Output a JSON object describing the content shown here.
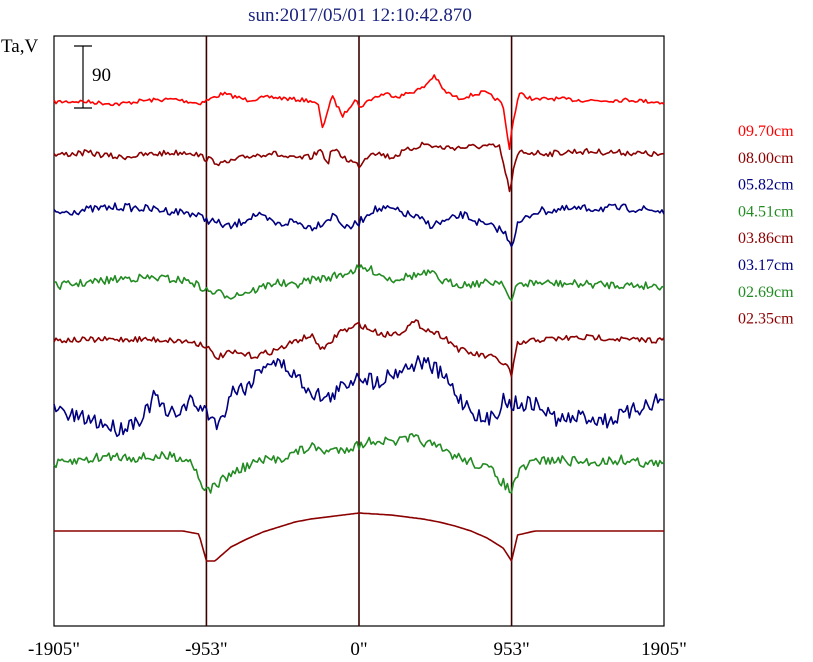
{
  "chart_data": {
    "type": "line",
    "title": "sun:2017/05/01 12:10:42.870",
    "ylabel": "Ta,V",
    "scale_bar_label": "90",
    "xlim": [
      -1905,
      1905
    ],
    "xticks": [
      {
        "value": -1905,
        "label": "-1905\""
      },
      {
        "value": -953,
        "label": "-953\""
      },
      {
        "value": 0,
        "label": "0\""
      },
      {
        "value": 953,
        "label": "953\""
      },
      {
        "value": 1905,
        "label": "1905\""
      }
    ],
    "vertical_lines": [
      -953,
      0,
      953
    ],
    "series": [
      {
        "name": "09.70cm",
        "color": "#ff0000",
        "offset": 102,
        "amp": 0.7,
        "noise": 2,
        "points": [
          [
            -1905,
            0
          ],
          [
            -1750,
            -1
          ],
          [
            -1500,
            3
          ],
          [
            -1350,
            -2
          ],
          [
            -1150,
            -4
          ],
          [
            -1000,
            2
          ],
          [
            -953,
            -2
          ],
          [
            -850,
            -12
          ],
          [
            -700,
            -3
          ],
          [
            -550,
            -7
          ],
          [
            -420,
            -4
          ],
          [
            -300,
            -2
          ],
          [
            -250,
            6
          ],
          [
            -230,
            40
          ],
          [
            -200,
            15
          ],
          [
            -170,
            -8
          ],
          [
            -100,
            20
          ],
          [
            -20,
            -6
          ],
          [
            0,
            8
          ],
          [
            80,
            -5
          ],
          [
            160,
            -12
          ],
          [
            250,
            -8
          ],
          [
            400,
            -20
          ],
          [
            470,
            -38
          ],
          [
            530,
            -16
          ],
          [
            620,
            -5
          ],
          [
            780,
            -14
          ],
          [
            860,
            -4
          ],
          [
            900,
            5
          ],
          [
            920,
            40
          ],
          [
            940,
            65
          ],
          [
            960,
            30
          ],
          [
            1000,
            -12
          ],
          [
            1100,
            -3
          ],
          [
            1200,
            -5
          ],
          [
            1350,
            -3
          ],
          [
            1500,
            -2
          ],
          [
            1700,
            -3
          ],
          [
            1905,
            1
          ]
        ]
      },
      {
        "name": "08.00cm",
        "color": "#8b0000",
        "offset": 155,
        "amp": 0.75,
        "noise": 3,
        "points": [
          [
            -1905,
            0
          ],
          [
            -1700,
            -3
          ],
          [
            -1500,
            3
          ],
          [
            -1250,
            -2
          ],
          [
            -1050,
            -4
          ],
          [
            -953,
            5
          ],
          [
            -850,
            12
          ],
          [
            -700,
            2
          ],
          [
            -550,
            -3
          ],
          [
            -420,
            5
          ],
          [
            -300,
            3
          ],
          [
            -230,
            -8
          ],
          [
            -200,
            15
          ],
          [
            -170,
            -8
          ],
          [
            -80,
            5
          ],
          [
            0,
            14
          ],
          [
            80,
            -5
          ],
          [
            200,
            3
          ],
          [
            400,
            -15
          ],
          [
            500,
            -10
          ],
          [
            650,
            -10
          ],
          [
            780,
            -12
          ],
          [
            880,
            -10
          ],
          [
            920,
            30
          ],
          [
            945,
            50
          ],
          [
            965,
            20
          ],
          [
            1000,
            -4
          ],
          [
            1200,
            -2
          ],
          [
            1350,
            -5
          ],
          [
            1700,
            -3
          ],
          [
            1905,
            0
          ]
        ]
      },
      {
        "name": "05.82cm",
        "color": "#000080",
        "offset": 213,
        "amp": 0.8,
        "noise": 4,
        "points": [
          [
            -1905,
            0
          ],
          [
            -1700,
            -4
          ],
          [
            -1500,
            -8
          ],
          [
            -1250,
            -4
          ],
          [
            -1050,
            0
          ],
          [
            -953,
            8
          ],
          [
            -800,
            18
          ],
          [
            -650,
            2
          ],
          [
            -500,
            15
          ],
          [
            -420,
            10
          ],
          [
            -300,
            18
          ],
          [
            -230,
            12
          ],
          [
            -150,
            2
          ],
          [
            -80,
            20
          ],
          [
            0,
            12
          ],
          [
            80,
            -4
          ],
          [
            200,
            -5
          ],
          [
            350,
            5
          ],
          [
            450,
            15
          ],
          [
            550,
            10
          ],
          [
            650,
            2
          ],
          [
            780,
            15
          ],
          [
            880,
            20
          ],
          [
            930,
            30
          ],
          [
            953,
            40
          ],
          [
            990,
            15
          ],
          [
            1100,
            -2
          ],
          [
            1250,
            -4
          ],
          [
            1500,
            -6
          ],
          [
            1700,
            -6
          ],
          [
            1905,
            -2
          ]
        ]
      },
      {
        "name": "04.51cm",
        "color": "#228b22",
        "offset": 286,
        "amp": 0.8,
        "noise": 4,
        "points": [
          [
            -1905,
            0
          ],
          [
            -1700,
            -4
          ],
          [
            -1450,
            -10
          ],
          [
            -1250,
            -10
          ],
          [
            -1050,
            -6
          ],
          [
            -953,
            6
          ],
          [
            -800,
            12
          ],
          [
            -650,
            5
          ],
          [
            -520,
            -5
          ],
          [
            -420,
            0
          ],
          [
            -300,
            -8
          ],
          [
            -200,
            -10
          ],
          [
            -100,
            -15
          ],
          [
            0,
            -22
          ],
          [
            80,
            -20
          ],
          [
            200,
            -8
          ],
          [
            300,
            -12
          ],
          [
            450,
            -16
          ],
          [
            530,
            -5
          ],
          [
            650,
            -2
          ],
          [
            800,
            -4
          ],
          [
            900,
            -6
          ],
          [
            930,
            12
          ],
          [
            953,
            20
          ],
          [
            990,
            -2
          ],
          [
            1100,
            -4
          ],
          [
            1250,
            -3
          ],
          [
            1500,
            -2
          ],
          [
            1700,
            -1
          ],
          [
            1905,
            0
          ]
        ]
      },
      {
        "name": "03.86cm",
        "color": "#8b0000",
        "offset": 340,
        "amp": 0.9,
        "noise": 3,
        "points": [
          [
            -1905,
            0
          ],
          [
            -1700,
            0
          ],
          [
            -1400,
            -1
          ],
          [
            -1200,
            0
          ],
          [
            -1050,
            2
          ],
          [
            -953,
            6
          ],
          [
            -900,
            20
          ],
          [
            -800,
            14
          ],
          [
            -650,
            18
          ],
          [
            -500,
            10
          ],
          [
            -380,
            0
          ],
          [
            -300,
            -5
          ],
          [
            -220,
            12
          ],
          [
            -120,
            -10
          ],
          [
            -50,
            -12
          ],
          [
            0,
            -18
          ],
          [
            60,
            -12
          ],
          [
            150,
            -6
          ],
          [
            250,
            -8
          ],
          [
            350,
            -20
          ],
          [
            420,
            -12
          ],
          [
            530,
            -4
          ],
          [
            620,
            10
          ],
          [
            700,
            15
          ],
          [
            850,
            20
          ],
          [
            930,
            30
          ],
          [
            953,
            40
          ],
          [
            990,
            5
          ],
          [
            1100,
            0
          ],
          [
            1300,
            -2
          ],
          [
            1500,
            -3
          ],
          [
            1700,
            0
          ],
          [
            1905,
            0
          ]
        ]
      },
      {
        "name": "03.17cm",
        "color": "#000080",
        "offset": 408,
        "amp": 0.85,
        "noise": 8,
        "points": [
          [
            -1905,
            0
          ],
          [
            -1800,
            10
          ],
          [
            -1650,
            15
          ],
          [
            -1500,
            25
          ],
          [
            -1350,
            10
          ],
          [
            -1270,
            -15
          ],
          [
            -1200,
            10
          ],
          [
            -1100,
            0
          ],
          [
            -1050,
            -8
          ],
          [
            -953,
            5
          ],
          [
            -870,
            20
          ],
          [
            -800,
            -20
          ],
          [
            -700,
            -25
          ],
          [
            -580,
            -55
          ],
          [
            -470,
            -50
          ],
          [
            -380,
            -35
          ],
          [
            -300,
            -20
          ],
          [
            -200,
            -10
          ],
          [
            -100,
            -25
          ],
          [
            0,
            -40
          ],
          [
            100,
            -30
          ],
          [
            200,
            -40
          ],
          [
            320,
            -50
          ],
          [
            400,
            -55
          ],
          [
            480,
            -45
          ],
          [
            560,
            -30
          ],
          [
            630,
            -10
          ],
          [
            700,
            0
          ],
          [
            780,
            18
          ],
          [
            860,
            5
          ],
          [
            900,
            -10
          ],
          [
            953,
            -5
          ],
          [
            1000,
            -5
          ],
          [
            1100,
            -5
          ],
          [
            1250,
            15
          ],
          [
            1400,
            10
          ],
          [
            1550,
            15
          ],
          [
            1700,
            5
          ],
          [
            1800,
            -5
          ],
          [
            1905,
            -10
          ]
        ]
      },
      {
        "name": "02.69cm",
        "color": "#228b22",
        "offset": 465,
        "amp": 0.9,
        "noise": 5,
        "points": [
          [
            -1905,
            0
          ],
          [
            -1750,
            -5
          ],
          [
            -1550,
            -10
          ],
          [
            -1350,
            -8
          ],
          [
            -1150,
            -10
          ],
          [
            -1050,
            -5
          ],
          [
            -953,
            30
          ],
          [
            -800,
            10
          ],
          [
            -650,
            -3
          ],
          [
            -500,
            -7
          ],
          [
            -380,
            -15
          ],
          [
            -300,
            -20
          ],
          [
            -200,
            -15
          ],
          [
            -100,
            -18
          ],
          [
            0,
            -22
          ],
          [
            100,
            -28
          ],
          [
            200,
            -25
          ],
          [
            350,
            -30
          ],
          [
            480,
            -20
          ],
          [
            600,
            -10
          ],
          [
            720,
            -2
          ],
          [
            820,
            5
          ],
          [
            900,
            20
          ],
          [
            953,
            30
          ],
          [
            990,
            10
          ],
          [
            1100,
            -5
          ],
          [
            1250,
            -5
          ],
          [
            1450,
            -3
          ],
          [
            1650,
            -6
          ],
          [
            1800,
            -2
          ],
          [
            1905,
            0
          ]
        ]
      },
      {
        "name": "02.35cm",
        "color": "#8b0000",
        "offset": 531,
        "amp": 1.0,
        "noise": 0,
        "points": [
          [
            -1905,
            0
          ],
          [
            -1500,
            0
          ],
          [
            -1100,
            0
          ],
          [
            -1000,
            3
          ],
          [
            -953,
            30
          ],
          [
            -900,
            30
          ],
          [
            -800,
            16
          ],
          [
            -700,
            8
          ],
          [
            -600,
            1
          ],
          [
            -500,
            -4
          ],
          [
            -400,
            -9
          ],
          [
            -300,
            -12
          ],
          [
            -200,
            -14
          ],
          [
            -100,
            -16
          ],
          [
            0,
            -18
          ],
          [
            100,
            -17
          ],
          [
            200,
            -16
          ],
          [
            300,
            -14
          ],
          [
            400,
            -12
          ],
          [
            500,
            -9
          ],
          [
            600,
            -5
          ],
          [
            700,
            0
          ],
          [
            800,
            7
          ],
          [
            900,
            17
          ],
          [
            953,
            30
          ],
          [
            990,
            4
          ],
          [
            1100,
            0
          ],
          [
            1300,
            0
          ],
          [
            1500,
            0
          ],
          [
            1905,
            0
          ]
        ]
      }
    ]
  }
}
